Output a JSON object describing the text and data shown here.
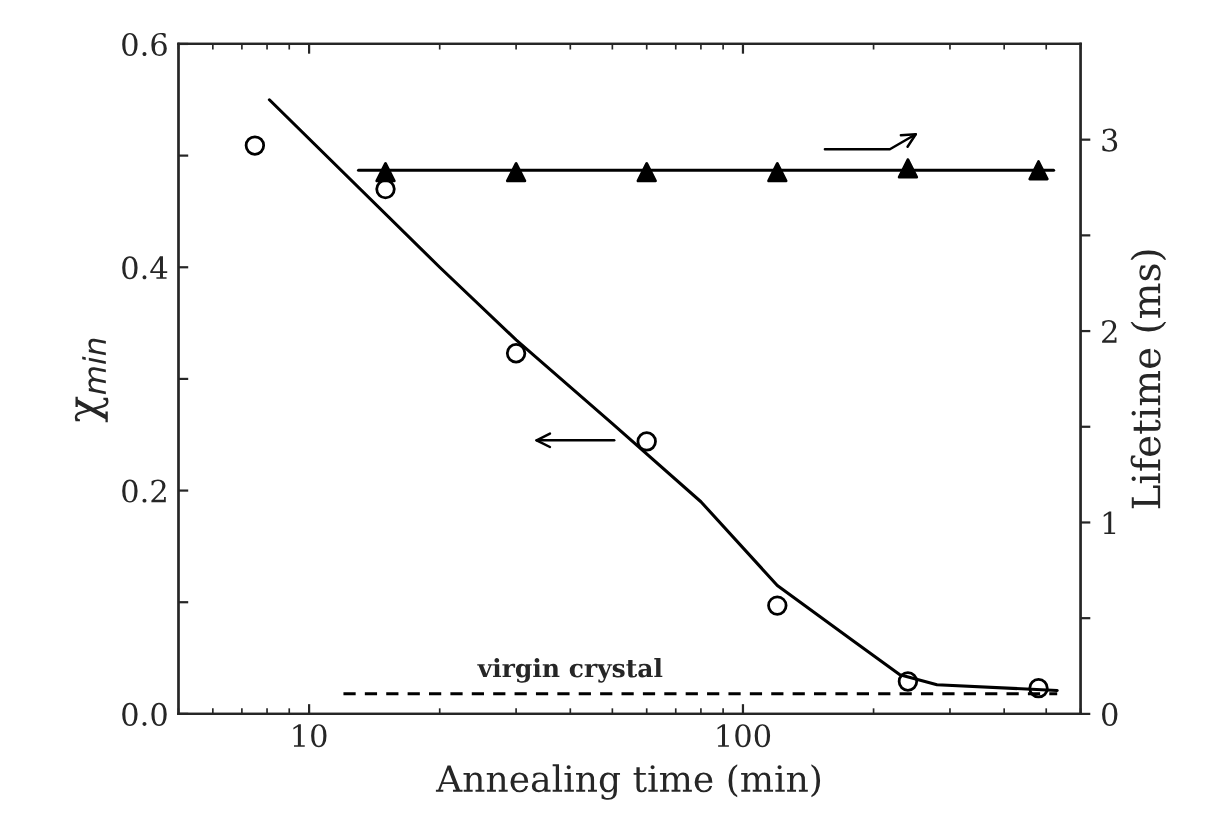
{
  "chart_data": {
    "type": "scatter",
    "xlabel": "Annealing time (min)",
    "ylabel": "χ$_{min}$",
    "y2label": "Lifetime (ms)",
    "log": "x",
    "grid": false,
    "xlim": [
      5,
      600
    ],
    "xticks": [
      10,
      100
    ],
    "ylim": [
      0,
      0.6
    ],
    "yticks": [
      {
        "value": 0,
        "label": "0.0"
      },
      {
        "value": 0.1,
        "label": null
      },
      {
        "value": 0.2,
        "label": "0.2"
      },
      {
        "value": 0.3,
        "label": null
      },
      {
        "value": 0.4,
        "label": "0.4"
      },
      {
        "value": 0.5,
        "label": null
      },
      {
        "value": 0.6,
        "label": "0.6"
      }
    ],
    "y2lim": [
      0,
      3.5
    ],
    "y2ticks": [
      0,
      {
        "value": 0.5,
        "label": null
      },
      1,
      {
        "value": 1.5,
        "label": null
      },
      2,
      {
        "value": 2.5,
        "label": null
      },
      3
    ],
    "series": [
      {
        "color": "#000000",
        "marker": "circle",
        "x": [
          7.5,
          15,
          30,
          60,
          120,
          240,
          480
        ],
        "values": [
          0.509,
          0.47,
          0.323,
          0.244,
          0.097,
          0.029,
          0.023
        ]
      },
      {
        "type": "line",
        "color": "#000000",
        "marker": "none",
        "line_style": "solid",
        "x": [
          8.1,
          20,
          30,
          50,
          80,
          120,
          180,
          230,
          280,
          530
        ],
        "values": [
          0.55,
          0.4,
          0.335,
          0.26,
          0.19,
          0.115,
          0.065,
          0.035,
          0.026,
          0.021
        ]
      },
      {
        "type": "line",
        "color": "#000000",
        "marker": "none",
        "line_style": "dashed",
        "x": [
          12,
          530
        ],
        "values": [
          0.018,
          0.018
        ]
      },
      {
        "axis": "y2",
        "color": "#000000",
        "marker": "triangle",
        "x": [
          15,
          30,
          60,
          120,
          240,
          480
        ],
        "values": [
          2.83,
          2.83,
          2.83,
          2.83,
          2.85,
          2.84
        ]
      },
      {
        "type": "line",
        "axis": "y2",
        "color": "#000000",
        "marker": "none",
        "line_style": "solid",
        "x": [
          13,
          520
        ],
        "values": [
          2.84,
          2.84
        ]
      }
    ],
    "annotations": [
      {
        "text": "virgin crystal",
        "x": 40,
        "y": 0.018
      }
    ]
  }
}
